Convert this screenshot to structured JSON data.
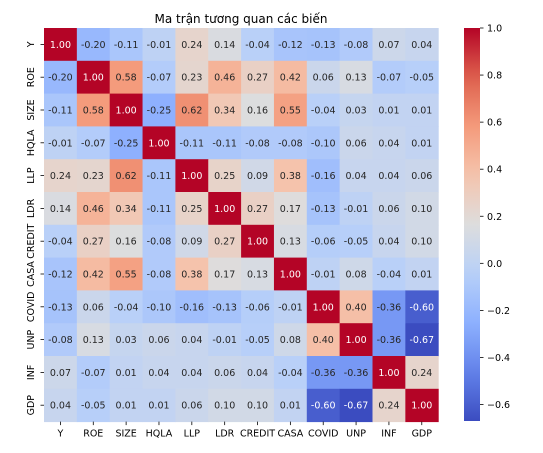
{
  "chart_data": {
    "type": "heatmap",
    "title": "Ma trận tương quan các biến",
    "labels": [
      "Y",
      "ROE",
      "SIZE",
      "HQLA",
      "LLP",
      "LDR",
      "CREDIT",
      "CASA",
      "COVID",
      "UNP",
      "INF",
      "GDP"
    ],
    "values": [
      [
        1.0,
        -0.2,
        -0.11,
        -0.01,
        0.24,
        0.14,
        -0.04,
        -0.12,
        -0.13,
        -0.08,
        0.07,
        0.04
      ],
      [
        -0.2,
        1.0,
        0.58,
        -0.07,
        0.23,
        0.46,
        0.27,
        0.42,
        0.06,
        0.13,
        -0.07,
        -0.05
      ],
      [
        -0.11,
        0.58,
        1.0,
        -0.25,
        0.62,
        0.34,
        0.16,
        0.55,
        -0.04,
        0.03,
        0.01,
        0.01
      ],
      [
        -0.01,
        -0.07,
        -0.25,
        1.0,
        -0.11,
        -0.11,
        -0.08,
        -0.08,
        -0.1,
        0.06,
        0.04,
        0.01
      ],
      [
        0.24,
        0.23,
        0.62,
        -0.11,
        1.0,
        0.25,
        0.09,
        0.38,
        -0.16,
        0.04,
        0.04,
        0.06
      ],
      [
        0.14,
        0.46,
        0.34,
        -0.11,
        0.25,
        1.0,
        0.27,
        0.17,
        -0.13,
        -0.01,
        0.06,
        0.1
      ],
      [
        -0.04,
        0.27,
        0.16,
        -0.08,
        0.09,
        0.27,
        1.0,
        0.13,
        -0.06,
        -0.05,
        0.04,
        0.1
      ],
      [
        -0.12,
        0.42,
        0.55,
        -0.08,
        0.38,
        0.17,
        0.13,
        1.0,
        -0.01,
        0.08,
        -0.04,
        0.01
      ],
      [
        -0.13,
        0.06,
        -0.04,
        -0.1,
        -0.16,
        -0.13,
        -0.06,
        -0.01,
        1.0,
        0.4,
        -0.36,
        -0.6
      ],
      [
        -0.08,
        0.13,
        0.03,
        0.06,
        0.04,
        -0.01,
        -0.05,
        0.08,
        0.4,
        1.0,
        -0.36,
        -0.67
      ],
      [
        0.07,
        -0.07,
        0.01,
        0.04,
        0.04,
        0.06,
        0.04,
        -0.04,
        -0.36,
        -0.36,
        1.0,
        0.24
      ],
      [
        0.04,
        -0.05,
        0.01,
        0.01,
        0.06,
        0.1,
        0.1,
        0.01,
        -0.6,
        -0.67,
        0.24,
        1.0
      ]
    ],
    "colormap": "coolwarm",
    "vmin": -0.67,
    "vmax": 1.0,
    "colorbar_ticks": [
      "1.0",
      "0.8",
      "0.6",
      "0.4",
      "0.2",
      "0.0",
      "−0.2",
      "−0.4",
      "−0.6"
    ],
    "colorbar_tick_values": [
      1.0,
      0.8,
      0.6,
      0.4,
      0.2,
      0.0,
      -0.2,
      -0.4,
      -0.6
    ],
    "colorbar_position": "right"
  }
}
